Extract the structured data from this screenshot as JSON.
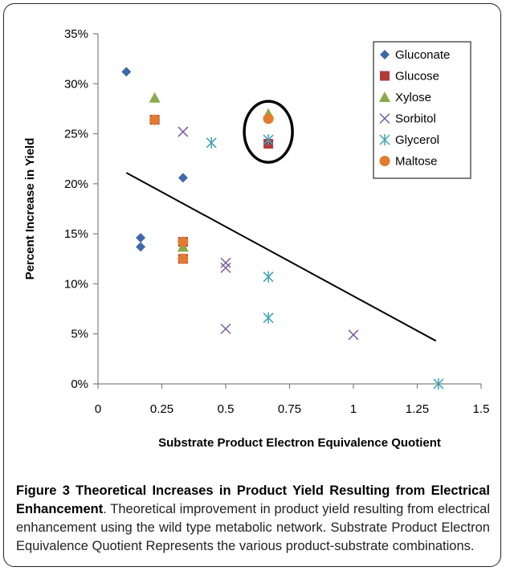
{
  "chart_data": {
    "type": "scatter",
    "xlabel": "Substrate Product Electron Equivalence Quotient",
    "ylabel": "Percent Increase in Yield",
    "xlim": [
      0,
      1.5
    ],
    "ylim": [
      0,
      35
    ],
    "xticks": [
      "0",
      "0.25",
      "0.5",
      "0.75",
      "1",
      "1.25",
      "1.5"
    ],
    "xtick_values": [
      0,
      0.25,
      0.5,
      0.75,
      1,
      1.25,
      1.5
    ],
    "yticks": [
      "0%",
      "5%",
      "10%",
      "15%",
      "20%",
      "25%",
      "30%",
      "35%"
    ],
    "ytick_values": [
      0,
      5,
      10,
      15,
      20,
      25,
      30,
      35
    ],
    "legend_position": "top-right",
    "series": [
      {
        "name": "Gluconate",
        "marker": "diamond",
        "color": "#3F68A8",
        "points": [
          [
            0.111,
            31.2
          ],
          [
            0.333,
            20.6
          ],
          [
            0.167,
            14.6
          ],
          [
            0.167,
            13.7
          ]
        ]
      },
      {
        "name": "Glucose",
        "marker": "square",
        "color": "#B23A3A",
        "points": [
          [
            0.222,
            26.4
          ],
          [
            0.333,
            14.2
          ],
          [
            0.333,
            12.5
          ],
          [
            0.667,
            24.0
          ]
        ]
      },
      {
        "name": "Xylose",
        "marker": "triangle",
        "color": "#8AAA4A",
        "points": [
          [
            0.222,
            28.6
          ],
          [
            0.333,
            13.7
          ],
          [
            0.667,
            27.0
          ]
        ]
      },
      {
        "name": "Sorbitol",
        "marker": "x",
        "color": "#7B5A9E",
        "points": [
          [
            0.333,
            25.2
          ],
          [
            0.5,
            12.1
          ],
          [
            0.5,
            11.6
          ],
          [
            0.5,
            5.5
          ],
          [
            1.0,
            4.9
          ]
        ]
      },
      {
        "name": "Glycerol",
        "marker": "asterisk",
        "color": "#3FA0B8",
        "points": [
          [
            0.444,
            24.1
          ],
          [
            0.667,
            24.4
          ],
          [
            0.667,
            10.7
          ],
          [
            0.667,
            6.6
          ],
          [
            1.333,
            0.0
          ]
        ]
      },
      {
        "name": "Maltose",
        "marker": "circle",
        "color": "#E07B30",
        "points": [
          [
            0.222,
            26.4
          ],
          [
            0.333,
            14.2
          ],
          [
            0.333,
            12.5
          ],
          [
            0.667,
            26.5
          ]
        ]
      }
    ],
    "trendline": {
      "x": [
        0.111,
        1.323
      ],
      "y": [
        21.1,
        4.3
      ],
      "color": "#000000"
    },
    "annotation": {
      "type": "ellipse",
      "center": [
        0.667,
        25.2
      ]
    }
  },
  "caption": {
    "label": "Figure 3",
    "title": "Theoretical Increases in Product Yield Resulting from Electrical Enhancement",
    "body": ". Theoretical improvement in product yield resulting from electrical enhancement using the wild type metabolic network. Substrate Product Electron Equivalence Quotient Represents the various product-substrate combinations."
  }
}
